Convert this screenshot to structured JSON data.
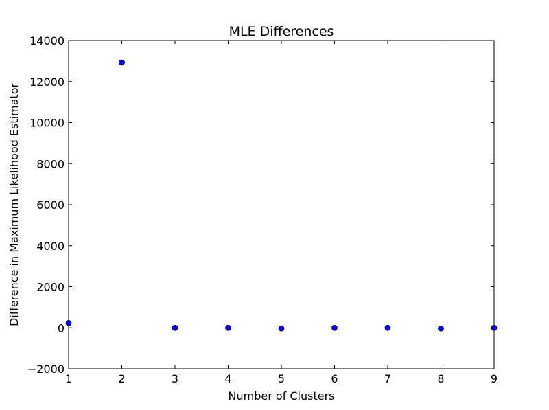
{
  "chart_data": {
    "type": "scatter",
    "title": "MLE Differences",
    "xlabel": "Number of Clusters",
    "ylabel": "Difference in Maximum Likelihood Estimator",
    "xlim": [
      1,
      9
    ],
    "ylim": [
      -2000,
      14000
    ],
    "xticks": [
      "1",
      "2",
      "3",
      "4",
      "5",
      "6",
      "7",
      "8",
      "9"
    ],
    "yticks": [
      "−2000",
      "0",
      "2000",
      "4000",
      "6000",
      "8000",
      "10000",
      "12000",
      "14000"
    ],
    "grid": false,
    "marker_color": "#0000ff",
    "series": [
      {
        "x": [
          1,
          2,
          3,
          4,
          5,
          6,
          7,
          8,
          9
        ],
        "y": [
          230,
          12930,
          0,
          0,
          -30,
          0,
          0,
          -30,
          0
        ]
      }
    ]
  }
}
